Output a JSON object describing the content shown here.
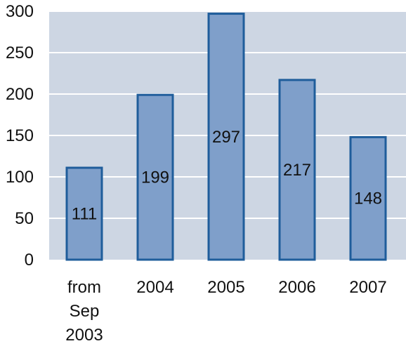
{
  "chart_data": {
    "type": "bar",
    "title": "",
    "xlabel": "",
    "ylabel": "",
    "categories": [
      [
        "from",
        "Sep",
        "2003"
      ],
      [
        "2004"
      ],
      [
        "2005"
      ],
      [
        "2006"
      ],
      [
        "2007"
      ]
    ],
    "values": [
      111,
      199,
      297,
      217,
      148
    ],
    "data_labels": [
      "111",
      "199",
      "297",
      "217",
      "148"
    ],
    "ylim": [
      0,
      300
    ],
    "yticks": [
      "0",
      "50",
      "100",
      "150",
      "200",
      "250",
      "300"
    ],
    "grid": true,
    "legend": "none",
    "colors": {
      "plot_background": "#cdd6e3",
      "bar_fill": "#7f9fca",
      "bar_stroke": "#1f5d9b",
      "gridline": "#ffffff"
    }
  }
}
